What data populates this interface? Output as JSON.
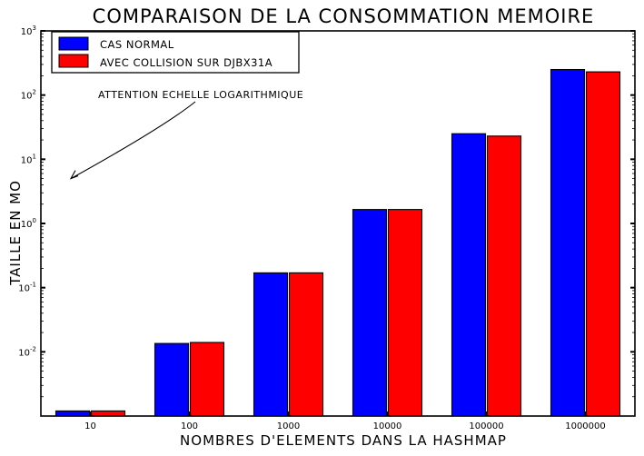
{
  "chart_data": {
    "type": "bar",
    "title": "COMPARAISON DE LA CONSOMMATION MEMOIRE",
    "xlabel": "NOMBRES D'ELEMENTS DANS LA HASHMAP",
    "ylabel": "TAILLE EN MO",
    "yscale": "log",
    "ylim": [
      0.001,
      1000
    ],
    "categories": [
      "10",
      "100",
      "1000",
      "10000",
      "100000",
      "1000000"
    ],
    "series": [
      {
        "name": "CAS NORMAL",
        "color": "#0000ff",
        "values": [
          0.0012,
          0.0135,
          0.17,
          1.65,
          25,
          250
        ]
      },
      {
        "name": "AVEC COLLISION SUR DJBX31A",
        "color": "#ff0000",
        "values": [
          0.0012,
          0.014,
          0.17,
          1.65,
          23,
          230
        ]
      }
    ],
    "yticks": [
      {
        "value": 0.01,
        "base": "10",
        "exp": "-2"
      },
      {
        "value": 0.1,
        "base": "10",
        "exp": "-1"
      },
      {
        "value": 1,
        "base": "10",
        "exp": "0"
      },
      {
        "value": 10,
        "base": "10",
        "exp": "1"
      },
      {
        "value": 100,
        "base": "10",
        "exp": "2"
      },
      {
        "value": 1000,
        "base": "10",
        "exp": "3"
      }
    ],
    "legend_position": "top-left",
    "grid": false,
    "annotation": {
      "text": "ATTENTION ECHELLE LOGARITHMIQUE",
      "target_value": 5,
      "target_position": "left-edge"
    }
  }
}
